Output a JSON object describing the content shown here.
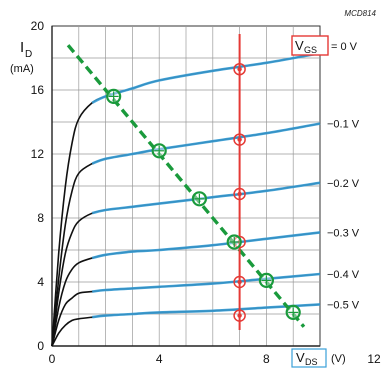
{
  "figure_id": "MCD814",
  "chart_data": {
    "type": "line",
    "xlabel": {
      "main": "V",
      "sub": "DS",
      "unit": "(V)"
    },
    "ylabel": {
      "main": "I",
      "sub": "D",
      "unit": "(mA)"
    },
    "legend_label": {
      "main": "V",
      "sub": "GS",
      "value": "= 0 V"
    },
    "xlim": [
      0,
      12
    ],
    "ylim": [
      0,
      20
    ],
    "x_ticks": [
      "0",
      "4",
      "8",
      "12"
    ],
    "y_ticks": [
      "0",
      "4",
      "8",
      "12",
      "16",
      "20"
    ],
    "grid": true,
    "colors": {
      "curve": "#111111",
      "curve_tail": "#3aa0d8",
      "load_line": "#1a9a3c",
      "marker_line": "#e53935",
      "highlight_box": "#e53935"
    },
    "series": [
      {
        "name": "0 V",
        "label": "= 0 V",
        "x": [
          0,
          0.25,
          0.5,
          0.75,
          1.0,
          1.5,
          2.0,
          3.0,
          4.0,
          6.0,
          8.0,
          10.0
        ],
        "y": [
          0,
          5.8,
          10.0,
          12.7,
          14.2,
          15.2,
          15.6,
          16.1,
          16.6,
          17.2,
          17.7,
          18.3
        ]
      },
      {
        "name": "-0.1 V",
        "label": "−0.1 V",
        "x": [
          0,
          0.25,
          0.5,
          0.75,
          1.0,
          1.5,
          2.0,
          3.0,
          4.0,
          6.0,
          8.0,
          10.0
        ],
        "y": [
          0,
          4.2,
          7.6,
          9.7,
          10.8,
          11.4,
          11.7,
          12.0,
          12.3,
          12.8,
          13.3,
          13.9
        ]
      },
      {
        "name": "-0.2 V",
        "label": "−0.2 V",
        "x": [
          0,
          0.25,
          0.5,
          0.75,
          1.0,
          1.5,
          2.0,
          3.0,
          4.0,
          6.0,
          8.0,
          10.0
        ],
        "y": [
          0,
          3.3,
          5.8,
          7.1,
          7.8,
          8.3,
          8.5,
          8.7,
          8.9,
          9.3,
          9.7,
          10.2
        ]
      },
      {
        "name": "-0.3 V",
        "label": "−0.3 V",
        "x": [
          0,
          0.25,
          0.5,
          0.75,
          1.0,
          1.5,
          2.0,
          3.0,
          4.0,
          6.0,
          8.0,
          10.0
        ],
        "y": [
          0,
          2.4,
          4.0,
          4.8,
          5.2,
          5.5,
          5.7,
          5.9,
          6.0,
          6.3,
          6.7,
          7.1
        ]
      },
      {
        "name": "-0.4 V",
        "label": "−0.4 V",
        "x": [
          0,
          0.25,
          0.5,
          0.75,
          1.0,
          1.5,
          2.0,
          3.0,
          4.0,
          6.0,
          8.0,
          10.0
        ],
        "y": [
          0,
          1.6,
          2.6,
          3.0,
          3.3,
          3.4,
          3.5,
          3.6,
          3.7,
          3.9,
          4.2,
          4.5
        ]
      },
      {
        "name": "-0.5 V",
        "label": "−0.5 V",
        "x": [
          0,
          0.25,
          0.5,
          0.75,
          1.0,
          1.5,
          2.0,
          3.0,
          4.0,
          6.0,
          8.0,
          10.0
        ],
        "y": [
          0,
          0.8,
          1.3,
          1.6,
          1.7,
          1.8,
          1.9,
          2.0,
          2.1,
          2.2,
          2.4,
          2.6
        ]
      }
    ],
    "load_line": {
      "x": [
        0.6,
        9.4
      ],
      "y": [
        18.8,
        1.2
      ],
      "style": "dashed"
    },
    "operating_points": [
      {
        "x": 2.3,
        "y": 15.6
      },
      {
        "x": 4.0,
        "y": 12.2
      },
      {
        "x": 5.5,
        "y": 9.2
      },
      {
        "x": 6.8,
        "y": 6.5
      },
      {
        "x": 8.0,
        "y": 4.1
      },
      {
        "x": 9.0,
        "y": 2.1
      }
    ],
    "vertical_marker": {
      "x": 7.0,
      "y_range": [
        1.0,
        19.5
      ],
      "points_y": [
        17.3,
        12.9,
        9.5,
        6.5,
        4.0,
        1.9
      ]
    }
  }
}
